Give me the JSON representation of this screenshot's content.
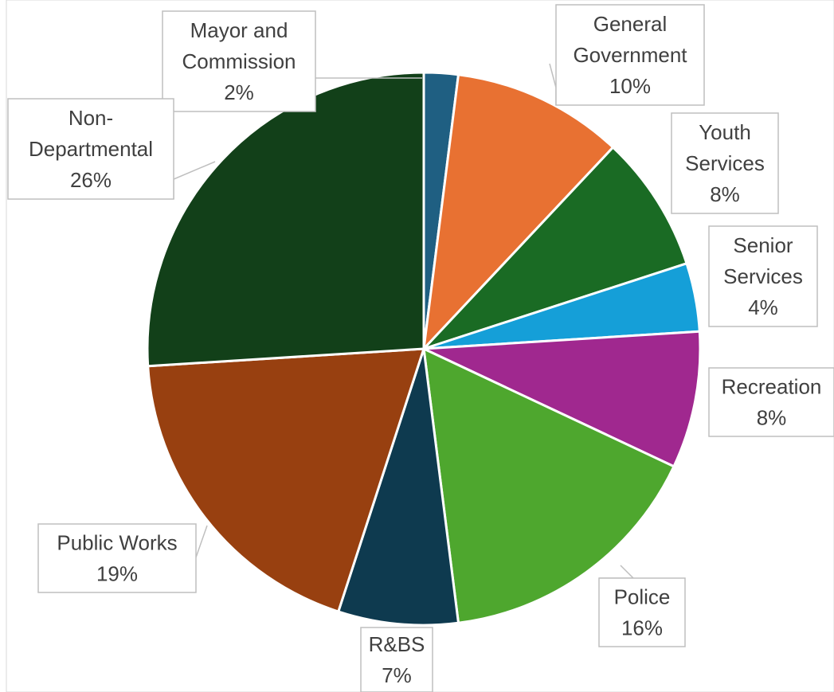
{
  "chart_data": {
    "type": "pie",
    "title": "",
    "slices": [
      {
        "label": "Mayor and Commission",
        "value": 2,
        "color": "#1f5f82"
      },
      {
        "label": "General Government",
        "value": 10,
        "color": "#e87132"
      },
      {
        "label": "Youth Services",
        "value": 8,
        "color": "#1a6b24"
      },
      {
        "label": "Senior Services",
        "value": 4,
        "color": "#159fd8"
      },
      {
        "label": "Recreation",
        "value": 8,
        "color": "#a0288f"
      },
      {
        "label": "Police",
        "value": 16,
        "color": "#4ea72e"
      },
      {
        "label": "R&BS",
        "value": 7,
        "color": "#0e3a4f"
      },
      {
        "label": "Public Works",
        "value": 19,
        "color": "#984010"
      },
      {
        "label": "Non-Departmental",
        "value": 26,
        "color": "#124019"
      }
    ],
    "data_labels": [
      {
        "lines": [
          "Mayor and",
          "Commission",
          "2%"
        ]
      },
      {
        "lines": [
          "General",
          "Government",
          "10%"
        ]
      },
      {
        "lines": [
          "Youth",
          "Services",
          "8%"
        ]
      },
      {
        "lines": [
          "Senior",
          "Services",
          "4%"
        ]
      },
      {
        "lines": [
          "Recreation",
          "8%"
        ]
      },
      {
        "lines": [
          "Police",
          "16%"
        ]
      },
      {
        "lines": [
          "R&BS",
          "7%"
        ]
      },
      {
        "lines": [
          "Public Works",
          "19%"
        ]
      },
      {
        "lines": [
          "Non-",
          "Departmental",
          "26%"
        ]
      }
    ]
  }
}
